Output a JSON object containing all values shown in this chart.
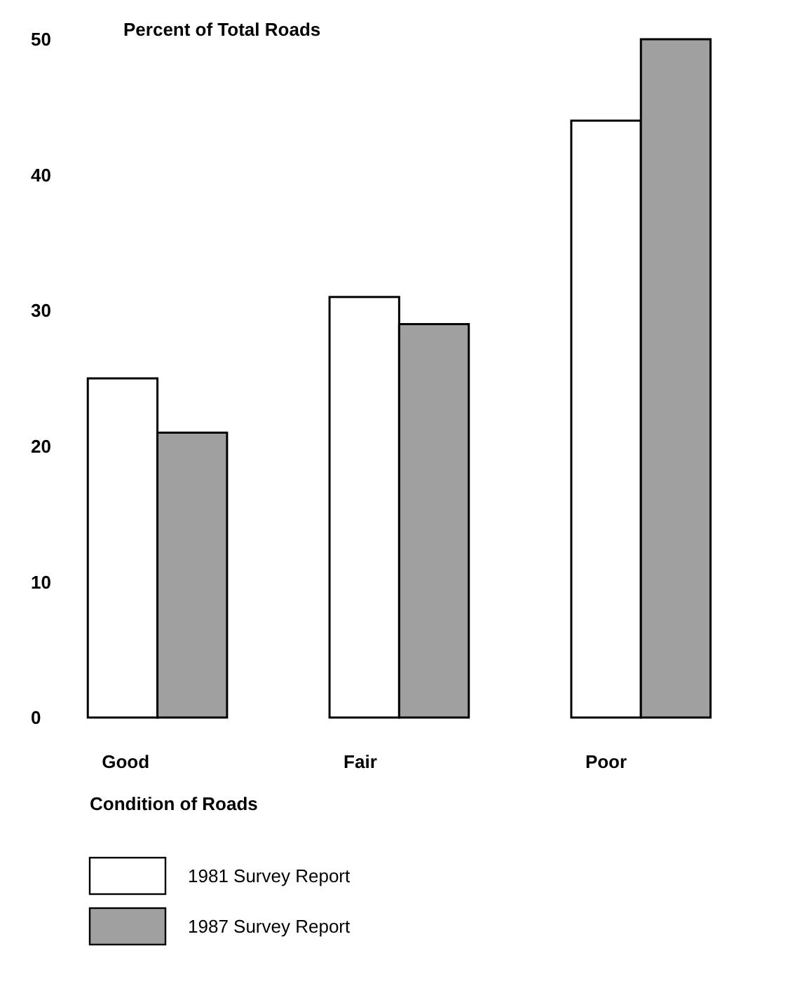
{
  "chart_data": {
    "type": "bar",
    "ylabel": "Percent of Total Roads",
    "xlabel": "Condition of Roads",
    "categories": [
      "Good",
      "Fair",
      "Poor"
    ],
    "series": [
      {
        "name": "1981 Survey Report",
        "color": "#ffffff",
        "values": [
          25,
          31,
          44
        ]
      },
      {
        "name": "1987 Survey Report",
        "color": "#a0a0a0",
        "values": [
          21,
          29,
          50
        ]
      }
    ],
    "ylim": [
      0,
      50
    ],
    "yticks": [
      0,
      10,
      20,
      30,
      40,
      50
    ],
    "grid": false,
    "legend": "bottom"
  }
}
